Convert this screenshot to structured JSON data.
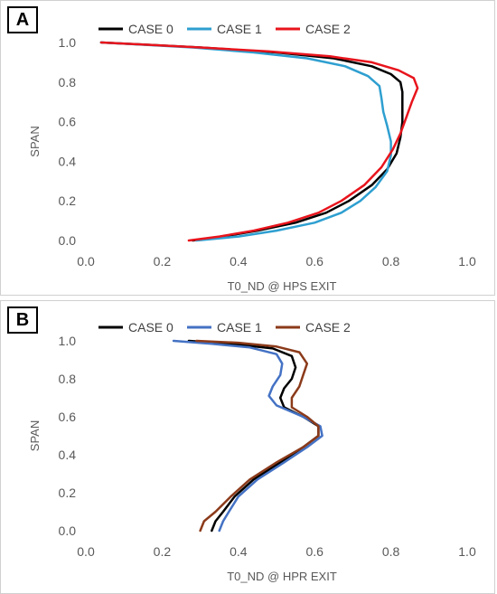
{
  "chart_data": [
    {
      "panel_label": "A",
      "type": "line",
      "xlabel": "T0_ND @ HPS EXIT",
      "ylabel": "SPAN",
      "xlim": [
        0,
        1
      ],
      "ylim": [
        0,
        1
      ],
      "xticks": [
        "0.0",
        "0.2",
        "0.4",
        "0.6",
        "0.8",
        "1.0"
      ],
      "yticks": [
        "0.0",
        "0.2",
        "0.4",
        "0.6",
        "0.8",
        "1.0"
      ],
      "grid": false,
      "legend_position": "top",
      "series": [
        {
          "name": "CASE 0",
          "color": "#000000",
          "points": [
            [
              0.28,
              0.0
            ],
            [
              0.36,
              0.02
            ],
            [
              0.45,
              0.05
            ],
            [
              0.55,
              0.09
            ],
            [
              0.63,
              0.14
            ],
            [
              0.69,
              0.2
            ],
            [
              0.75,
              0.28
            ],
            [
              0.79,
              0.36
            ],
            [
              0.815,
              0.44
            ],
            [
              0.825,
              0.52
            ],
            [
              0.83,
              0.6
            ],
            [
              0.83,
              0.68
            ],
            [
              0.83,
              0.75
            ],
            [
              0.825,
              0.8
            ],
            [
              0.8,
              0.84
            ],
            [
              0.75,
              0.88
            ],
            [
              0.65,
              0.92
            ],
            [
              0.5,
              0.95
            ],
            [
              0.3,
              0.975
            ],
            [
              0.15,
              0.99
            ],
            [
              0.04,
              1.0
            ]
          ]
        },
        {
          "name": "CASE 1",
          "color": "#2e9fd0",
          "points": [
            [
              0.29,
              0.0
            ],
            [
              0.4,
              0.02
            ],
            [
              0.5,
              0.05
            ],
            [
              0.6,
              0.09
            ],
            [
              0.67,
              0.14
            ],
            [
              0.72,
              0.2
            ],
            [
              0.76,
              0.27
            ],
            [
              0.79,
              0.35
            ],
            [
              0.8,
              0.43
            ],
            [
              0.8,
              0.5
            ],
            [
              0.79,
              0.58
            ],
            [
              0.78,
              0.65
            ],
            [
              0.775,
              0.72
            ],
            [
              0.77,
              0.78
            ],
            [
              0.74,
              0.83
            ],
            [
              0.68,
              0.88
            ],
            [
              0.58,
              0.92
            ],
            [
              0.44,
              0.95
            ],
            [
              0.28,
              0.975
            ],
            [
              0.14,
              0.99
            ],
            [
              0.04,
              1.0
            ]
          ]
        },
        {
          "name": "CASE 2",
          "color": "#e8141c",
          "points": [
            [
              0.27,
              0.0
            ],
            [
              0.35,
              0.02
            ],
            [
              0.44,
              0.05
            ],
            [
              0.53,
              0.09
            ],
            [
              0.61,
              0.14
            ],
            [
              0.67,
              0.2
            ],
            [
              0.73,
              0.28
            ],
            [
              0.775,
              0.37
            ],
            [
              0.805,
              0.46
            ],
            [
              0.825,
              0.54
            ],
            [
              0.84,
              0.62
            ],
            [
              0.855,
              0.7
            ],
            [
              0.87,
              0.77
            ],
            [
              0.86,
              0.82
            ],
            [
              0.82,
              0.86
            ],
            [
              0.75,
              0.9
            ],
            [
              0.64,
              0.93
            ],
            [
              0.48,
              0.955
            ],
            [
              0.3,
              0.975
            ],
            [
              0.15,
              0.99
            ],
            [
              0.04,
              1.0
            ]
          ]
        }
      ]
    },
    {
      "panel_label": "B",
      "type": "line",
      "xlabel": "T0_ND @ HPR EXIT",
      "ylabel": "SPAN",
      "xlim": [
        0,
        1
      ],
      "ylim": [
        0,
        1
      ],
      "xticks": [
        "0.0",
        "0.2",
        "0.4",
        "0.6",
        "0.8",
        "1.0"
      ],
      "yticks": [
        "0.0",
        "0.2",
        "0.4",
        "0.6",
        "0.8",
        "1.0"
      ],
      "grid": false,
      "legend_position": "top",
      "series": [
        {
          "name": "CASE 0",
          "color": "#000000",
          "points": [
            [
              0.33,
              0.0
            ],
            [
              0.34,
              0.05
            ],
            [
              0.36,
              0.1
            ],
            [
              0.39,
              0.18
            ],
            [
              0.44,
              0.27
            ],
            [
              0.51,
              0.36
            ],
            [
              0.57,
              0.44
            ],
            [
              0.61,
              0.5
            ],
            [
              0.61,
              0.55
            ],
            [
              0.57,
              0.6
            ],
            [
              0.52,
              0.65
            ],
            [
              0.51,
              0.7
            ],
            [
              0.52,
              0.75
            ],
            [
              0.54,
              0.8
            ],
            [
              0.55,
              0.86
            ],
            [
              0.54,
              0.92
            ],
            [
              0.49,
              0.96
            ],
            [
              0.38,
              0.985
            ],
            [
              0.27,
              1.0
            ]
          ]
        },
        {
          "name": "CASE 1",
          "color": "#4472c4",
          "points": [
            [
              0.35,
              0.0
            ],
            [
              0.36,
              0.05
            ],
            [
              0.375,
              0.1
            ],
            [
              0.4,
              0.18
            ],
            [
              0.45,
              0.27
            ],
            [
              0.52,
              0.36
            ],
            [
              0.58,
              0.44
            ],
            [
              0.62,
              0.5
            ],
            [
              0.615,
              0.55
            ],
            [
              0.57,
              0.6
            ],
            [
              0.5,
              0.66
            ],
            [
              0.48,
              0.71
            ],
            [
              0.49,
              0.76
            ],
            [
              0.51,
              0.82
            ],
            [
              0.515,
              0.88
            ],
            [
              0.5,
              0.93
            ],
            [
              0.43,
              0.965
            ],
            [
              0.33,
              0.985
            ],
            [
              0.23,
              1.0
            ]
          ]
        },
        {
          "name": "CASE 2",
          "color": "#8b3a1a",
          "points": [
            [
              0.3,
              0.0
            ],
            [
              0.31,
              0.05
            ],
            [
              0.34,
              0.1
            ],
            [
              0.38,
              0.18
            ],
            [
              0.43,
              0.27
            ],
            [
              0.5,
              0.36
            ],
            [
              0.57,
              0.44
            ],
            [
              0.61,
              0.5
            ],
            [
              0.61,
              0.55
            ],
            [
              0.58,
              0.6
            ],
            [
              0.54,
              0.65
            ],
            [
              0.54,
              0.7
            ],
            [
              0.56,
              0.76
            ],
            [
              0.57,
              0.82
            ],
            [
              0.58,
              0.88
            ],
            [
              0.56,
              0.94
            ],
            [
              0.5,
              0.97
            ],
            [
              0.4,
              0.99
            ],
            [
              0.29,
              1.0
            ]
          ]
        }
      ]
    }
  ]
}
